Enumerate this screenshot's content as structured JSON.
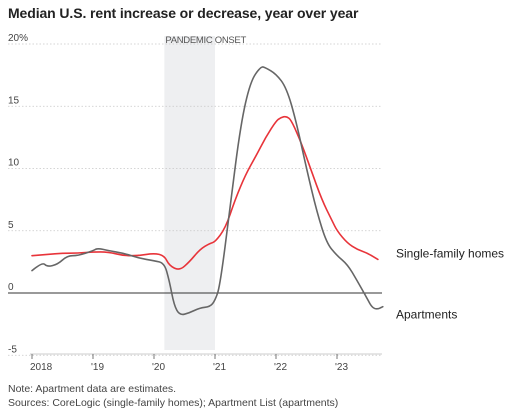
{
  "chart_data": {
    "type": "line",
    "title": "Median U.S. rent increase or decrease, year over year",
    "xlabel": "",
    "ylabel": "",
    "xlim": [
      2018.0,
      2023.83
    ],
    "ylim": [
      -5,
      20
    ],
    "y_ticks": [
      20,
      15,
      10,
      5,
      0,
      -5
    ],
    "y_tick_labels": [
      "20%",
      "15",
      "10",
      "5",
      "0",
      "-5"
    ],
    "x_ticks": [
      2018,
      2019,
      2020,
      2021,
      2022,
      2023
    ],
    "x_tick_labels": [
      "2018",
      "'19",
      "'20",
      "'21",
      "'22",
      "'23"
    ],
    "grid": "horizontal dashed",
    "shaded_region": {
      "label": "PANDEMIC ONSET",
      "x_start": 2020.17,
      "x_end": 2021.0
    },
    "series": [
      {
        "name": "Single-family homes",
        "color": "#e8343a",
        "x": [
          2018.0,
          2018.25,
          2018.5,
          2018.75,
          2019.0,
          2019.25,
          2019.5,
          2019.75,
          2020.0,
          2020.17,
          2020.25,
          2020.42,
          2020.58,
          2020.75,
          2020.92,
          2021.0,
          2021.17,
          2021.33,
          2021.5,
          2021.67,
          2021.83,
          2022.0,
          2022.08,
          2022.17,
          2022.25,
          2022.42,
          2022.58,
          2022.75,
          2022.92,
          2023.0,
          2023.17,
          2023.33,
          2023.5,
          2023.67
        ],
        "values": [
          3.0,
          3.1,
          3.2,
          3.2,
          3.3,
          3.3,
          3.0,
          3.0,
          3.2,
          3.0,
          2.2,
          1.8,
          2.5,
          3.5,
          4.0,
          4.1,
          5.2,
          7.5,
          9.5,
          11.0,
          12.5,
          13.8,
          14.1,
          14.2,
          13.9,
          12.0,
          9.8,
          7.5,
          5.8,
          5.0,
          4.0,
          3.5,
          3.2,
          2.7
        ]
      },
      {
        "name": "Apartments",
        "color": "#666666",
        "x": [
          2018.0,
          2018.17,
          2018.25,
          2018.42,
          2018.58,
          2018.75,
          2019.0,
          2019.08,
          2019.25,
          2019.5,
          2019.75,
          2020.0,
          2020.17,
          2020.25,
          2020.33,
          2020.42,
          2020.58,
          2020.75,
          2020.92,
          2021.0,
          2021.08,
          2021.25,
          2021.42,
          2021.58,
          2021.75,
          2021.83,
          2022.0,
          2022.17,
          2022.33,
          2022.5,
          2022.67,
          2022.83,
          2023.0,
          2023.17,
          2023.33,
          2023.5,
          2023.58,
          2023.67,
          2023.75
        ],
        "values": [
          1.8,
          2.5,
          2.1,
          2.3,
          3.0,
          3.0,
          3.4,
          3.6,
          3.4,
          3.2,
          2.8,
          2.6,
          2.4,
          1.0,
          -1.0,
          -1.8,
          -1.6,
          -1.2,
          -1.1,
          -0.6,
          0.5,
          7.0,
          13.5,
          17.0,
          18.2,
          18.1,
          17.6,
          16.5,
          13.8,
          10.0,
          6.5,
          4.0,
          3.0,
          2.3,
          1.0,
          -0.5,
          -1.2,
          -1.3,
          -1.1
        ]
      }
    ]
  },
  "notes": {
    "line1": "Note: Apartment data are estimates.",
    "line2": "Sources: CoreLogic (single-family homes); Apartment List (apartments)"
  }
}
